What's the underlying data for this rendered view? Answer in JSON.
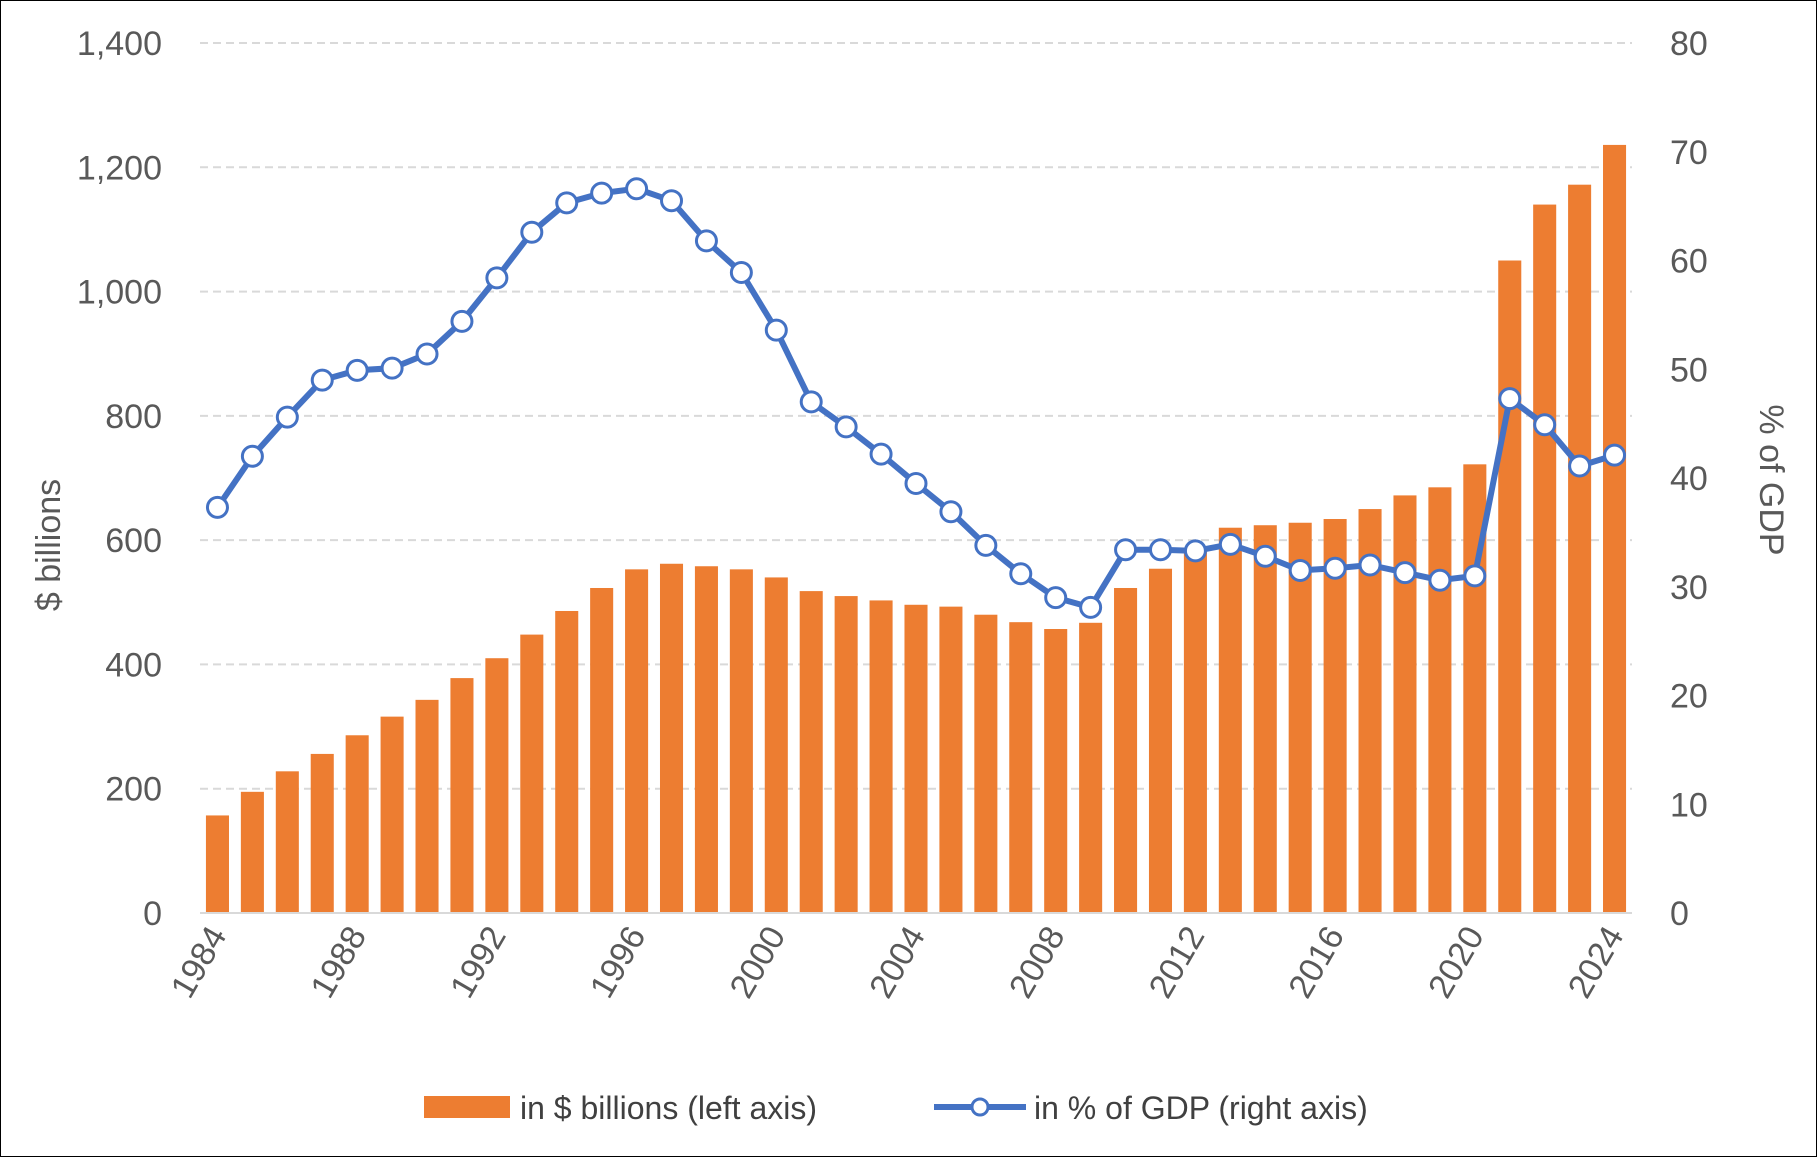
{
  "chart_data": {
    "type": "bar+line",
    "title": "",
    "x": [
      1984,
      1985,
      1986,
      1987,
      1988,
      1989,
      1990,
      1991,
      1992,
      1993,
      1994,
      1995,
      1996,
      1997,
      1998,
      1999,
      2000,
      2001,
      2002,
      2003,
      2004,
      2005,
      2006,
      2007,
      2008,
      2009,
      2010,
      2011,
      2012,
      2013,
      2014,
      2015,
      2016,
      2017,
      2018,
      2019,
      2020,
      2021,
      2022,
      2023,
      2024
    ],
    "x_tick_labels": [
      "1984",
      "1988",
      "1992",
      "1996",
      "2000",
      "2004",
      "2008",
      "2012",
      "2016",
      "2020",
      "2024"
    ],
    "series": [
      {
        "name": "in $ billions (left axis)",
        "type": "bar",
        "axis": "left",
        "color": "#ED7D31",
        "values": [
          157,
          195,
          228,
          256,
          286,
          316,
          343,
          378,
          410,
          448,
          486,
          523,
          553,
          562,
          558,
          553,
          540,
          518,
          510,
          503,
          496,
          493,
          480,
          468,
          457,
          467,
          523,
          554,
          586,
          620,
          624,
          628,
          634,
          650,
          672,
          685,
          722,
          1050,
          1140,
          1172,
          1236
        ]
      },
      {
        "name": "in % of GDP (right axis)",
        "type": "line",
        "axis": "right",
        "color": "#4472C4",
        "marker_fill": "#FFFFFF",
        "values": [
          37.3,
          42.0,
          45.6,
          49.0,
          49.9,
          50.1,
          51.4,
          54.4,
          58.4,
          62.6,
          65.3,
          66.2,
          66.6,
          65.5,
          61.8,
          58.9,
          53.6,
          47.0,
          44.7,
          42.2,
          39.5,
          36.9,
          33.8,
          31.2,
          29.0,
          28.1,
          33.4,
          33.4,
          33.3,
          33.9,
          32.8,
          31.5,
          31.7,
          32.0,
          31.3,
          30.6,
          31.0,
          47.3,
          44.9,
          41.1,
          42.1
        ]
      }
    ],
    "y_left": {
      "label": "$ billions",
      "range": [
        0,
        1400
      ],
      "ticks": [
        "0",
        "200",
        "400",
        "600",
        "800",
        "1,000",
        "1,200",
        "1,400"
      ]
    },
    "y_right": {
      "label": "% of GDP",
      "range": [
        0,
        80
      ],
      "ticks": [
        "0",
        "10",
        "20",
        "30",
        "40",
        "50",
        "60",
        "70",
        "80"
      ]
    },
    "gridlines": true,
    "legend_position": "bottom"
  },
  "legend": {
    "bar_label": "in $ billions (left axis)",
    "line_label": "in % of GDP (right axis)"
  }
}
